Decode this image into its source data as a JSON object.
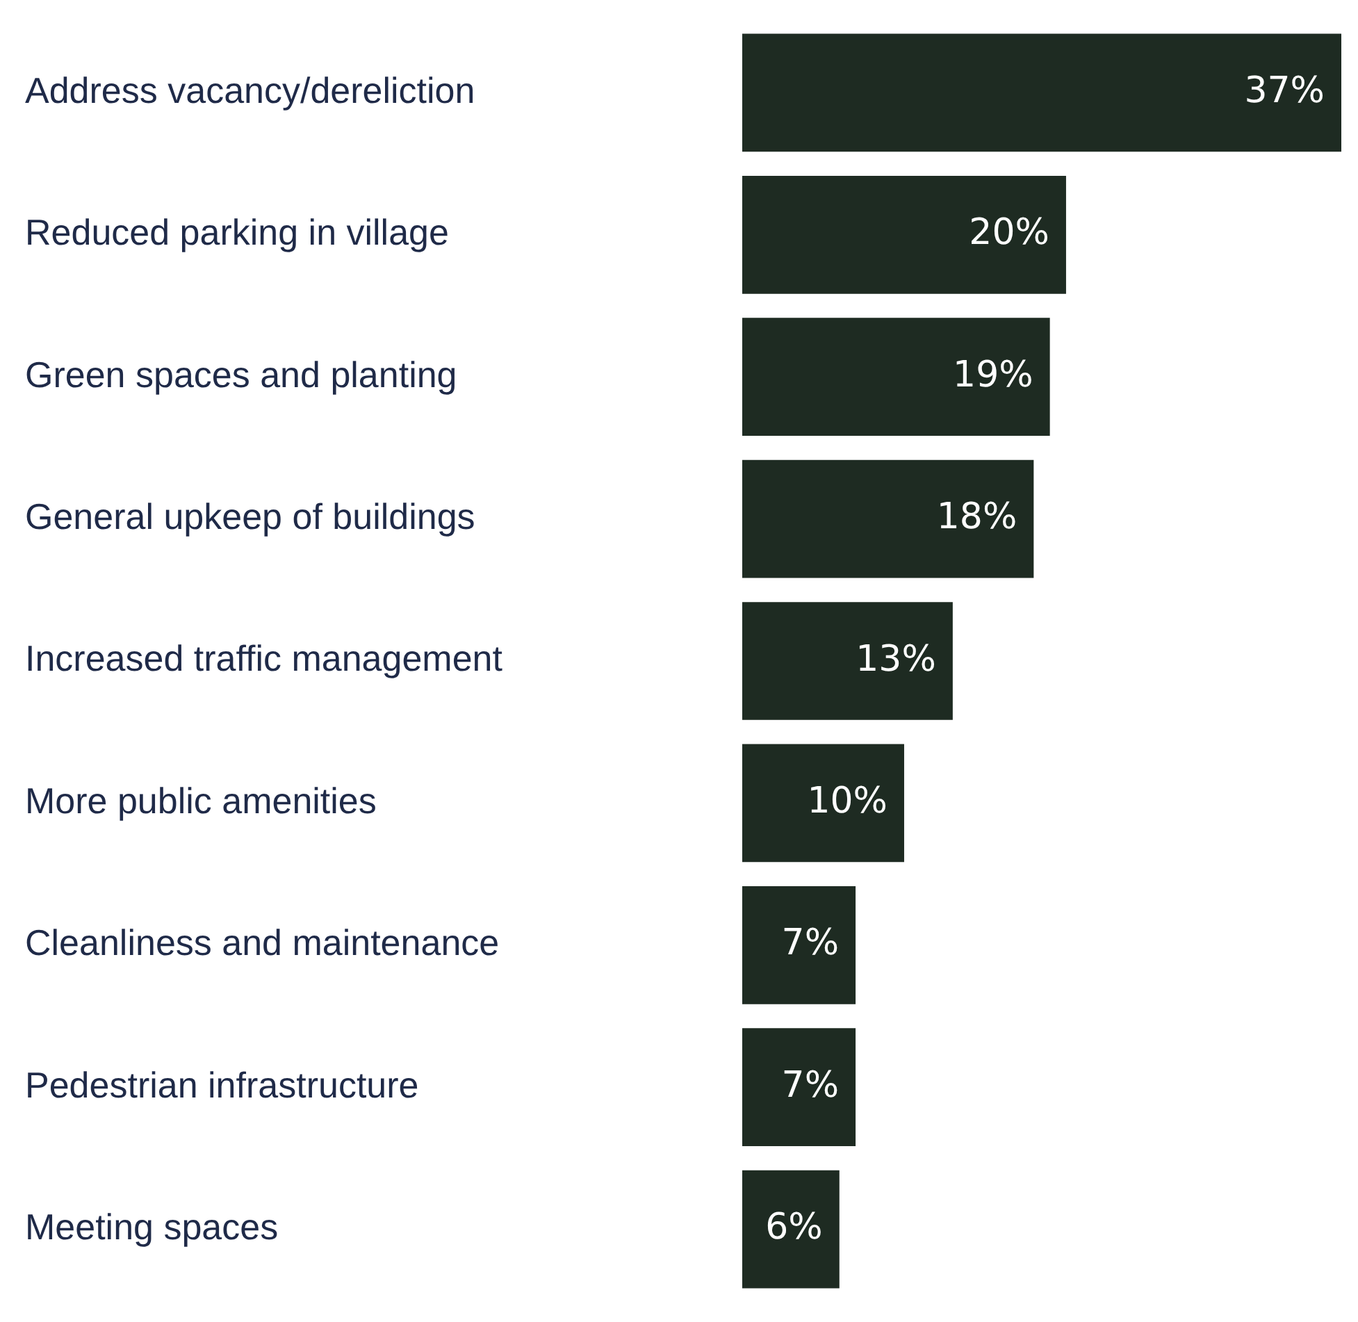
{
  "chart_data": {
    "type": "bar",
    "orientation": "horizontal",
    "categories": [
      "Address vacancy/dereliction",
      "Reduced parking in village",
      "Green spaces and planting",
      "General upkeep of buildings",
      "Increased traffic management",
      "More public amenities",
      "Cleanliness and maintenance",
      "Pedestrian infrastructure",
      "Meeting spaces"
    ],
    "values": [
      37,
      20,
      19,
      18,
      13,
      10,
      7,
      7,
      6
    ],
    "value_labels": [
      "37%",
      "20%",
      "19%",
      "18%",
      "13%",
      "10%",
      "7%",
      "7%",
      "6%"
    ],
    "color": "#1e2b22",
    "grid": false,
    "legend": false
  }
}
